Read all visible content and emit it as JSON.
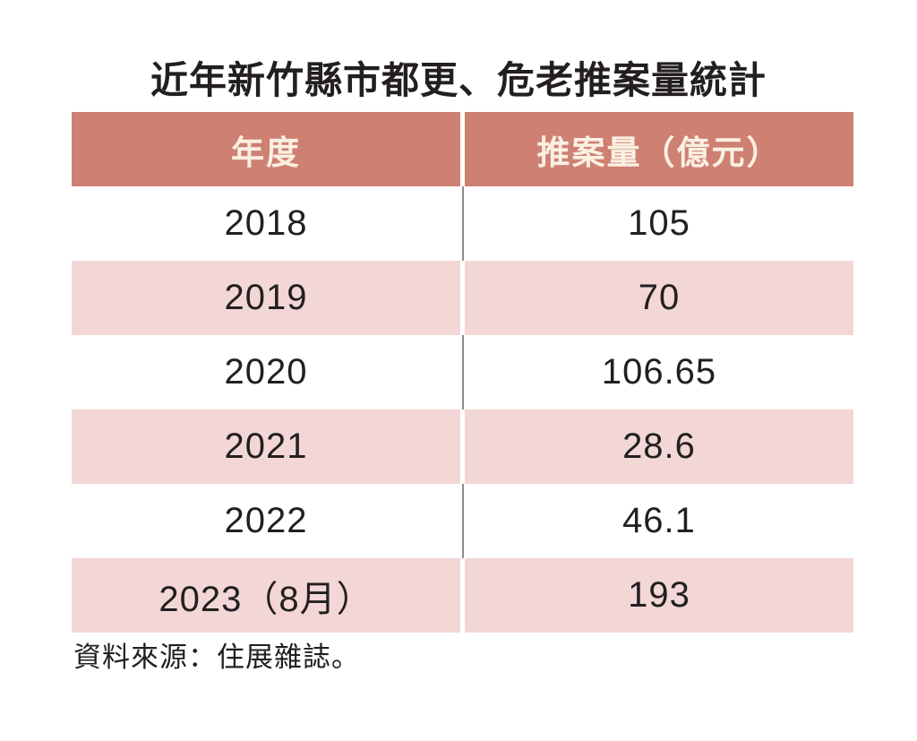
{
  "title": "近年新竹縣市都更、危老推案量統計",
  "table": {
    "columns": [
      "年度",
      "推案量（億元）"
    ],
    "rows": [
      {
        "year": "2018",
        "amount": "105"
      },
      {
        "year": "2019",
        "amount": "70"
      },
      {
        "year": "2020",
        "amount": "106.65"
      },
      {
        "year": "2021",
        "amount": "28.6"
      },
      {
        "year": "2022",
        "amount": "46.1"
      },
      {
        "year": "2023（8月）",
        "amount": "193"
      }
    ]
  },
  "source": "資料來源：住展雜誌。",
  "colors": {
    "header_bg": "#ce8073",
    "header_text": "#faf0e1",
    "alt_row_bg": "#f2d7d6",
    "body_text": "#231f20",
    "divider_line": "#8c8c8c"
  },
  "chart_data": {
    "type": "table",
    "title": "近年新竹縣市都更、危老推案量統計",
    "columns": [
      "年度",
      "推案量（億元）"
    ],
    "categories": [
      "2018",
      "2019",
      "2020",
      "2021",
      "2022",
      "2023（8月）"
    ],
    "values": [
      105,
      70,
      106.65,
      28.6,
      46.1,
      193
    ],
    "unit": "億元",
    "source": "資料來源：住展雜誌。"
  }
}
